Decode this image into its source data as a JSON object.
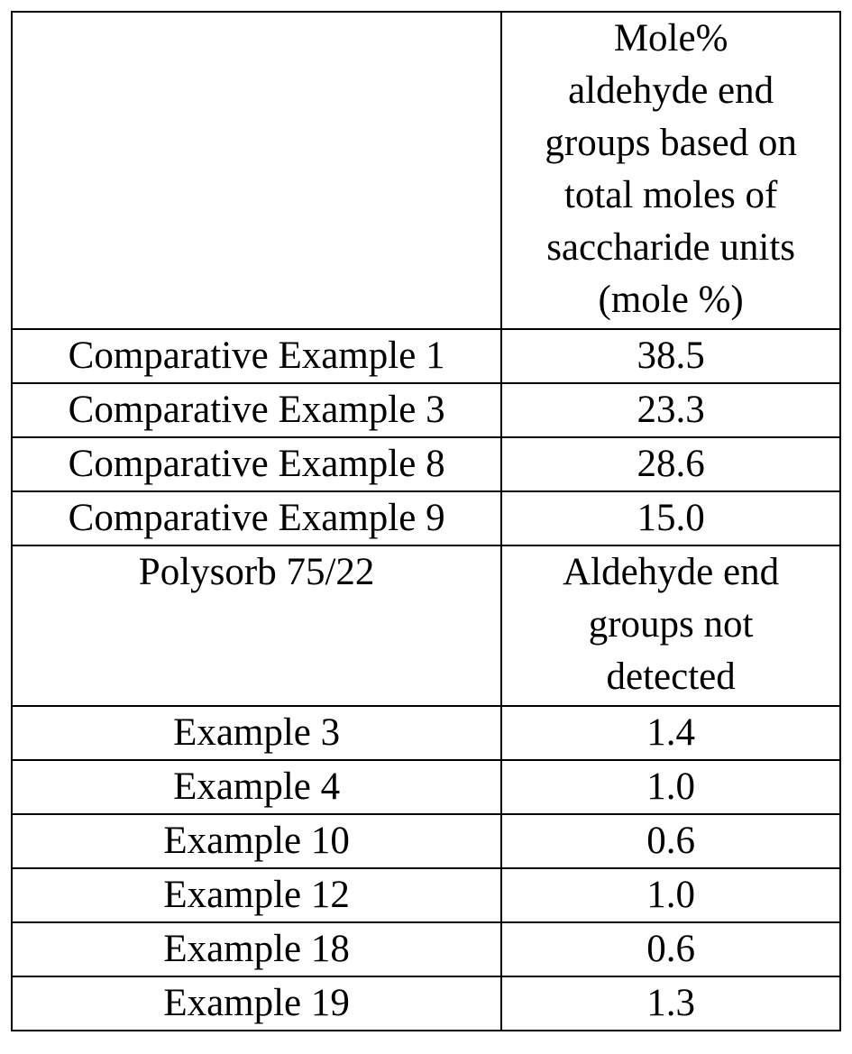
{
  "table": {
    "header": [
      "",
      "Mole%\naldehyde end\ngroups based on\ntotal moles of\nsaccharide units\n(mole %)"
    ],
    "rows": [
      [
        "Comparative Example 1",
        "38.5"
      ],
      [
        "Comparative Example 3",
        "23.3"
      ],
      [
        "Comparative Example 8",
        "28.6"
      ],
      [
        "Comparative Example 9",
        "15.0"
      ],
      [
        "Polysorb 75/22",
        "Aldehyde end\ngroups not\ndetected"
      ],
      [
        "Example 3",
        "1.4"
      ],
      [
        "Example 4",
        "1.0"
      ],
      [
        "Example 10",
        "0.6"
      ],
      [
        "Example 12",
        "1.0"
      ],
      [
        "Example 18",
        "0.6"
      ],
      [
        "Example 19",
        "1.3"
      ]
    ]
  }
}
